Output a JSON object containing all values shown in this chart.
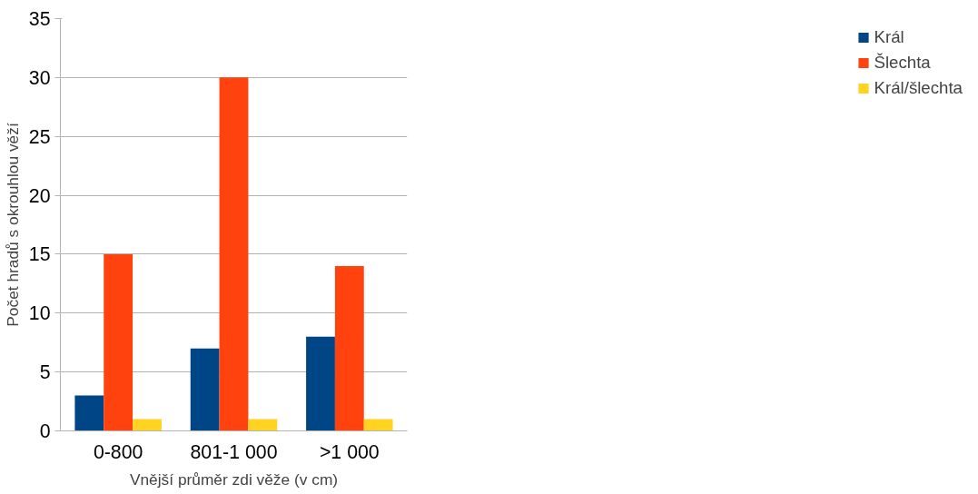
{
  "chart_data": {
    "type": "bar",
    "xlabel": "Vnější průměr zdi věže (v cm)",
    "ylabel": "Počet hradů s okrouhlou věží",
    "categories": [
      "0-800",
      "801-1 000",
      ">1 000"
    ],
    "series": [
      {
        "name": "Král",
        "color": "#004586",
        "values": [
          3,
          7,
          8
        ]
      },
      {
        "name": "Šlechta",
        "color": "#ff420e",
        "values": [
          15,
          30,
          14
        ]
      },
      {
        "name": "Král/šlechta",
        "color": "#ffd320",
        "values": [
          1,
          1,
          1
        ]
      }
    ],
    "ylim": [
      0,
      35
    ],
    "yticks": [
      0,
      5,
      10,
      15,
      20,
      25,
      30,
      35
    ],
    "grid": "y",
    "legend": "right"
  }
}
